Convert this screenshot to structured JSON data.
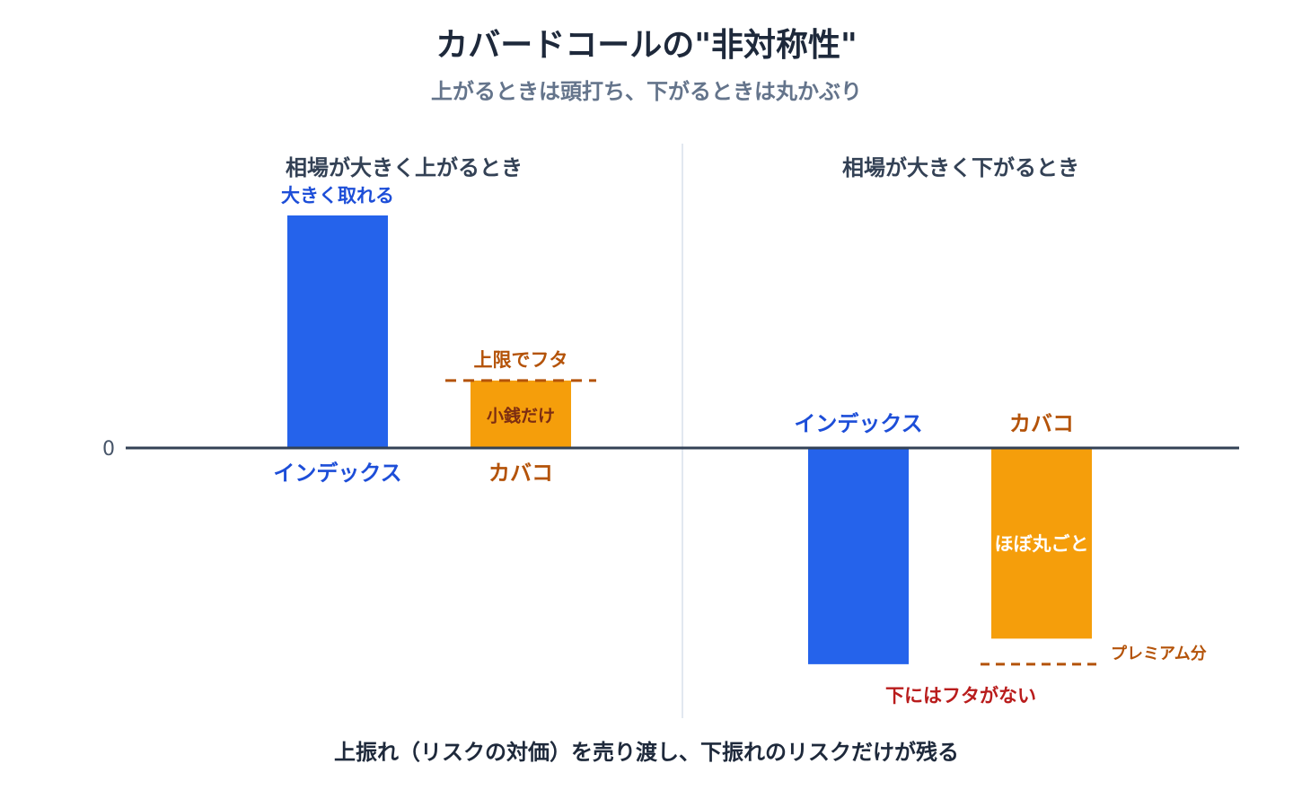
{
  "chart_data": {
    "type": "bar",
    "title": "カバードコールの\"非対称性\"",
    "subtitle": "上がるときは頭打ち、下がるときは丸かぶり",
    "zero_label": "0",
    "footer": "上振れ（リスクの対価）を売り渡し、下振れのリスクだけが残る",
    "colors": {
      "index": "#2563eb",
      "covered_call": "#f59e0b",
      "index_text": "#1d4ed8",
      "covered_call_text": "#b45309",
      "warning_text": "#b91c1c",
      "axis": "#334155",
      "divider": "#e2e8f0"
    },
    "panels": [
      {
        "title": "相場が大きく上がるとき",
        "categories": [
          "インデックス",
          "カバコ"
        ],
        "values": [
          1.0,
          0.29
        ],
        "bar_annotations": [
          "大きく取れる",
          "小銭だけ"
        ],
        "reference_line": {
          "value": 0.29,
          "label": "上限でフタ"
        }
      },
      {
        "title": "相場が大きく下がるとき",
        "categories": [
          "インデックス",
          "カバコ"
        ],
        "values": [
          -0.93,
          -0.82
        ],
        "bar_annotations": [
          "",
          "ほぼ丸ごと"
        ],
        "reference_line": {
          "value": -0.93,
          "label": "プレミアム分"
        },
        "note": "下にはフタがない"
      }
    ]
  }
}
